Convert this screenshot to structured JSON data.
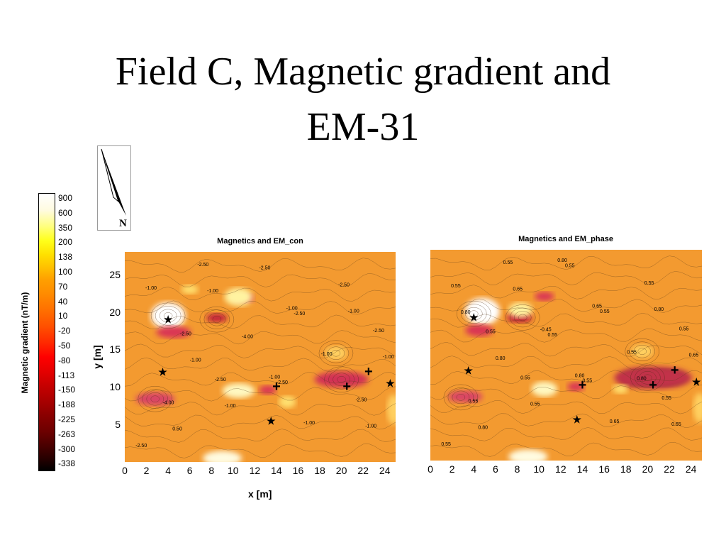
{
  "slide": {
    "title_line1": "Field C, Magnetic gradient and",
    "title_line2": "EM-31"
  },
  "compass": {
    "label": "N"
  },
  "colorbar": {
    "label": "Magnetic gradient (nT/m)",
    "ticks": [
      "900",
      "600",
      "350",
      "200",
      "138",
      "100",
      "70",
      "40",
      "10",
      "-20",
      "-50",
      "-80",
      "-113",
      "-150",
      "-188",
      "-225",
      "-263",
      "-300",
      "-338"
    ]
  },
  "chart_data": [
    {
      "type": "heatmap",
      "title": "Magnetics and EM_con",
      "xlabel": "x [m]",
      "ylabel": "y [m]",
      "x_ticks": [
        "0",
        "2",
        "4",
        "6",
        "8",
        "10",
        "12",
        "14",
        "16",
        "18",
        "20",
        "22",
        "24"
      ],
      "y_ticks": [
        "25",
        "20",
        "15",
        "10",
        "5"
      ],
      "xlim": [
        0,
        25
      ],
      "ylim": [
        0,
        28
      ],
      "colorscale_label": "Magnetic gradient (nT/m)",
      "contour_labels": [
        "-2.50",
        "-2.50",
        "-2.50",
        "-2.50",
        "-2.50",
        "-2.50",
        "-2.50",
        "-2.50",
        "-2.50",
        "-2.50",
        "-4.00",
        "-4.00",
        "-1.00",
        "-1.00",
        "-1.00",
        "-1.00",
        "-1.00",
        "-1.00",
        "-1.00",
        "-1.00",
        "-1.00",
        "-1.00",
        "-1.00",
        "0.50"
      ],
      "markers": [
        {
          "symbol": "★",
          "x": 4,
          "y": 19
        },
        {
          "symbol": "★",
          "x": 3.5,
          "y": 12
        },
        {
          "symbol": "★",
          "x": 13.5,
          "y": 5.5
        },
        {
          "symbol": "★",
          "x": 24.5,
          "y": 10.5
        },
        {
          "symbol": "+",
          "x": 14,
          "y": 10
        },
        {
          "symbol": "+",
          "x": 20.5,
          "y": 10
        },
        {
          "symbol": "+",
          "x": 22.5,
          "y": 12
        }
      ]
    },
    {
      "type": "heatmap",
      "title": "Magnetics and EM_phase",
      "xlabel": "",
      "ylabel": "",
      "x_ticks": [
        "0",
        "2",
        "4",
        "6",
        "8",
        "10",
        "12",
        "14",
        "16",
        "18",
        "20",
        "22",
        "24"
      ],
      "xlim": [
        0,
        25
      ],
      "ylim": [
        0,
        28
      ],
      "contour_labels": [
        "0.55",
        "0.55",
        "0.55",
        "0.55",
        "0.55",
        "0.55",
        "0.55",
        "0.55",
        "0.55",
        "0.55",
        "0.55",
        "0.55",
        "0.55",
        "0.55",
        "0.55",
        "0.65",
        "0.65",
        "0.65",
        "0.65",
        "0.65",
        "0.80",
        "0.80",
        "0.80",
        "0.80",
        "0.80",
        "0.80",
        "0.80",
        "-0.45"
      ],
      "markers": [
        {
          "symbol": "★",
          "x": 4,
          "y": 19
        },
        {
          "symbol": "★",
          "x": 3.5,
          "y": 12
        },
        {
          "symbol": "★",
          "x": 13.5,
          "y": 5.5
        },
        {
          "symbol": "★",
          "x": 24.5,
          "y": 10.5
        },
        {
          "symbol": "+",
          "x": 14,
          "y": 10
        },
        {
          "symbol": "+",
          "x": 20.5,
          "y": 10
        },
        {
          "symbol": "+",
          "x": 22.5,
          "y": 12
        }
      ]
    }
  ]
}
